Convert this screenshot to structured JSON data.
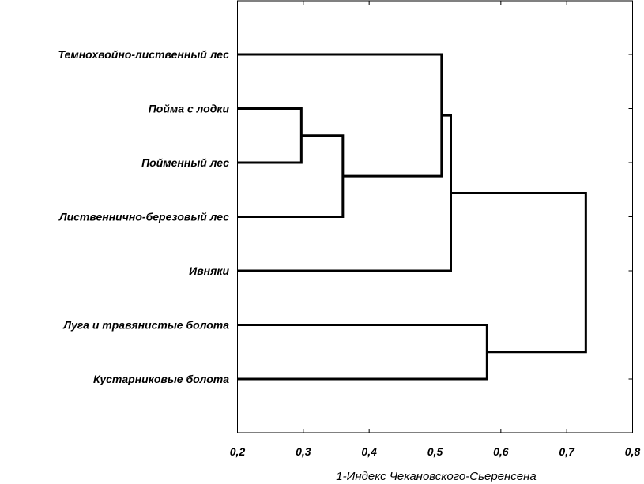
{
  "chart_data": {
    "type": "dendrogram",
    "orientation": "horizontal",
    "xlabel": "1-Индекс Чекановского-Сьеренсена",
    "xlim": [
      0.2,
      0.8
    ],
    "xticks": [
      "0,2",
      "0,3",
      "0,4",
      "0,5",
      "0,6",
      "0,7",
      "0,8"
    ],
    "xtick_values": [
      0.2,
      0.3,
      0.4,
      0.5,
      0.6,
      0.7,
      0.8
    ],
    "leaves": [
      "Темнохвойно-лиственный лес",
      "Пойма с лодки",
      "Пойменный лес",
      "Лиственнично-березовый лес",
      "Ивняки",
      "Луга и травянистые болота",
      "Кустарниковые болота"
    ],
    "merges": [
      {
        "a": "L1",
        "b": "L2",
        "height": 0.297
      },
      {
        "a": "N0",
        "b": "L3",
        "height": 0.36
      },
      {
        "a": "L0",
        "b": "N1",
        "height": 0.51
      },
      {
        "a": "N2",
        "b": "L4",
        "height": 0.524
      },
      {
        "a": "L5",
        "b": "L6",
        "height": 0.579
      },
      {
        "a": "N3",
        "b": "N4",
        "height": 0.729
      }
    ],
    "grid": false,
    "line_color": "#000000"
  }
}
